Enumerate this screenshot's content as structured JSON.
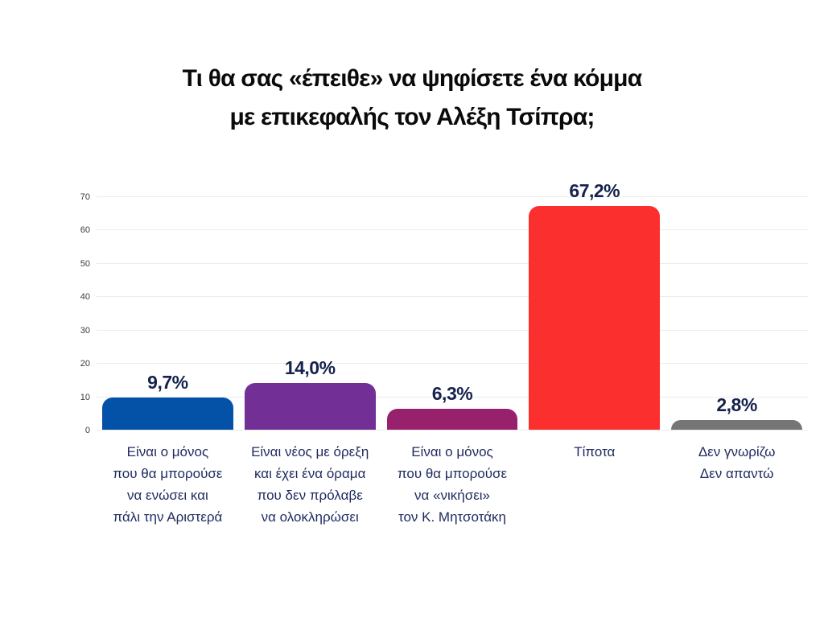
{
  "page": {
    "background_color": "#ffffff"
  },
  "chart_data": {
    "type": "bar",
    "title": "Τι θα σας «έπειθε» να ψηφίσετε ένα κόμμα με επικεφαλής τον Αλέξη Τσίπρα;",
    "title_lines": [
      "Τι θα σας «έπειθε» να ψηφίσετε ένα κόμμα",
      "με επικεφαλής τον Αλέξη Τσίπρα;"
    ],
    "categories": [
      "Είναι ο μόνος που θα μπορούσε να ενώσει και πάλι την Αριστερά",
      "Είναι νέος με όρεξη και έχει ένα όραμα που δεν πρόλαβε να ολοκληρώσει",
      "Είναι ο μόνος που θα μπορούσε να «νικήσει» τον Κ. Μητσοτάκη",
      "Τίποτα",
      "Δεν γνωρίζω Δεν απαντώ"
    ],
    "category_lines": [
      [
        "Είναι ο μόνος",
        "που θα μπορούσε",
        "να ενώσει και",
        "πάλι την Αριστερά"
      ],
      [
        "Είναι νέος με όρεξη",
        "και έχει ένα όραμα",
        "που δεν πρόλαβε",
        "να ολοκληρώσει"
      ],
      [
        "Είναι ο μόνος",
        "που θα μπορούσε",
        "να «νικήσει»",
        "τον Κ. Μητσοτάκη"
      ],
      [
        "Τίποτα"
      ],
      [
        "Δεν γνωρίζω",
        "Δεν απαντώ"
      ]
    ],
    "values": [
      9.7,
      14.0,
      6.3,
      67.2,
      2.8
    ],
    "value_labels": [
      "9,7%",
      "14,0%",
      "6,3%",
      "67,2%",
      "2,8%"
    ],
    "bar_colors": [
      "#0451a8",
      "#722f96",
      "#97216d",
      "#fc2f2f",
      "#757575"
    ],
    "ylim": [
      0,
      70
    ],
    "yticks": [
      0,
      10,
      20,
      30,
      40,
      50,
      60,
      70
    ],
    "xlabel": "",
    "ylabel": "",
    "grid": "horizontal",
    "legend": "none",
    "colors": {
      "title": "#0a0a0a",
      "value_label": "#15224d",
      "category_label": "#1e2a5e",
      "gridline": "#ececec",
      "tick_label": "#3c3c3c"
    }
  }
}
